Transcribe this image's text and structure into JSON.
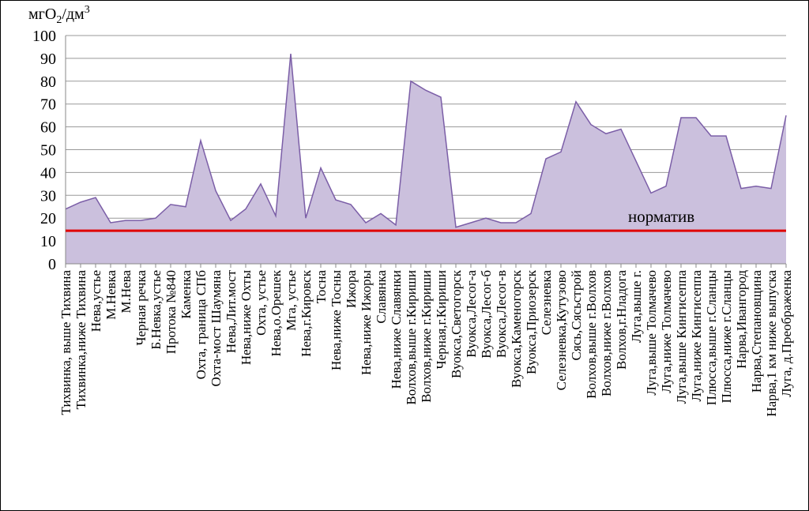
{
  "chart_data": {
    "type": "area",
    "y_label": [
      "мгO",
      "2",
      "/дм",
      "3"
    ],
    "categories": [
      "Тихвинка, выше Тихвина",
      "Тихвинка,ниже Тихвина",
      "Нева,устье",
      "М.Невка",
      "М.Нева",
      "Черная речка",
      "Б.Невка,устье",
      "Протока №840",
      "Каменка",
      "Охта, граница СПб",
      "Охта-мост Шаумяна",
      "Нева,Лит.мост",
      "Нева,ниже Охты",
      "Охта, устье",
      "Нева,о.Орешек",
      "Мга, устье",
      "Нева,г.Кировск",
      "Тосна",
      "Нева,ниже Тосны",
      "Ижора",
      "Нева,ниже Ижоры",
      "Славянка",
      "Нева,ниже Славянки",
      "Волхов,выше г.Кириши",
      "Волхов,ниже г.Кириши",
      "Черная,г.Кириши",
      "Вуокса,Светогорск",
      "Вуокса,Лесог-а",
      "Вуокса,Лесог-б",
      "Вуокса,Лесог-в",
      "Вуокса,Каменогорск",
      "Вуокса,Приозерск",
      "Селезневка",
      "Селезневка,Кутузово",
      "Сясь,Сясьстрой",
      "Волхов,выше г.Волхов",
      "Волхов,ниже г.Волхов",
      "Волхов,г.Нладога",
      "Луга,выше г.",
      "Луга,выше Толмачево",
      "Луга,ниже Толмачево",
      "Луга,выше Кингисеппа",
      "Луга,ниже Кингисеппа",
      "Плюсса,выше г.Сланцы",
      "Плюсса,ниже г.Сланцы",
      "Нарва,Ивангород",
      "Нарва,Степановщина",
      "Нарва,1 км ниже выпуска",
      "Луга, д.Преображенка"
    ],
    "values": [
      24,
      27,
      29,
      18,
      19,
      19,
      20,
      26,
      25,
      54,
      32,
      19,
      24,
      35,
      21,
      92,
      20,
      42,
      28,
      26,
      18,
      22,
      17,
      80,
      76,
      73,
      16,
      18,
      20,
      18,
      18,
      22,
      46,
      49,
      71,
      61,
      57,
      59,
      45,
      31,
      34,
      64,
      64,
      56,
      56,
      33,
      34,
      33,
      65
    ],
    "color": "#cbc0dd",
    "line_color": "#7b5ea7",
    "ylim": [
      0,
      100
    ],
    "yticks": [
      0,
      10,
      20,
      30,
      40,
      50,
      60,
      70,
      80,
      90,
      100
    ],
    "grid": true,
    "reference_line": {
      "label": "норматив",
      "value": 14.5,
      "color": "#e00000"
    }
  }
}
